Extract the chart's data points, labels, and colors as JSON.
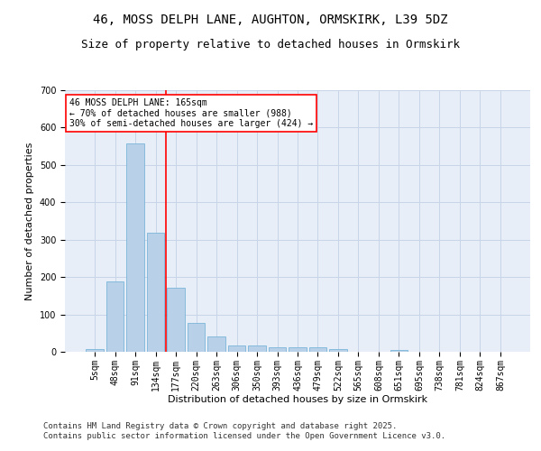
{
  "title1": "46, MOSS DELPH LANE, AUGHTON, ORMSKIRK, L39 5DZ",
  "title2": "Size of property relative to detached houses in Ormskirk",
  "xlabel": "Distribution of detached houses by size in Ormskirk",
  "ylabel": "Number of detached properties",
  "categories": [
    "5sqm",
    "48sqm",
    "91sqm",
    "134sqm",
    "177sqm",
    "220sqm",
    "263sqm",
    "306sqm",
    "350sqm",
    "393sqm",
    "436sqm",
    "479sqm",
    "522sqm",
    "565sqm",
    "608sqm",
    "651sqm",
    "695sqm",
    "738sqm",
    "781sqm",
    "824sqm",
    "867sqm"
  ],
  "values": [
    8,
    188,
    557,
    318,
    172,
    77,
    40,
    16,
    16,
    12,
    12,
    12,
    8,
    0,
    0,
    5,
    0,
    0,
    0,
    0,
    0
  ],
  "bar_color": "#b8d0e8",
  "bar_edge_color": "#6aaed6",
  "grid_color": "#c8d4e8",
  "background_color": "#e8eef8",
  "vline_x": 3.5,
  "vline_color": "red",
  "annotation_line1": "46 MOSS DELPH LANE: 165sqm",
  "annotation_line2": "← 70% of detached houses are smaller (988)",
  "annotation_line3": "30% of semi-detached houses are larger (424) →",
  "annotation_box_color": "red",
  "ylim": [
    0,
    700
  ],
  "yticks": [
    0,
    100,
    200,
    300,
    400,
    500,
    600,
    700
  ],
  "footer": "Contains HM Land Registry data © Crown copyright and database right 2025.\nContains public sector information licensed under the Open Government Licence v3.0.",
  "title_fontsize": 10,
  "subtitle_fontsize": 9,
  "axis_label_fontsize": 8,
  "tick_fontsize": 7,
  "annotation_fontsize": 7,
  "footer_fontsize": 6.5
}
